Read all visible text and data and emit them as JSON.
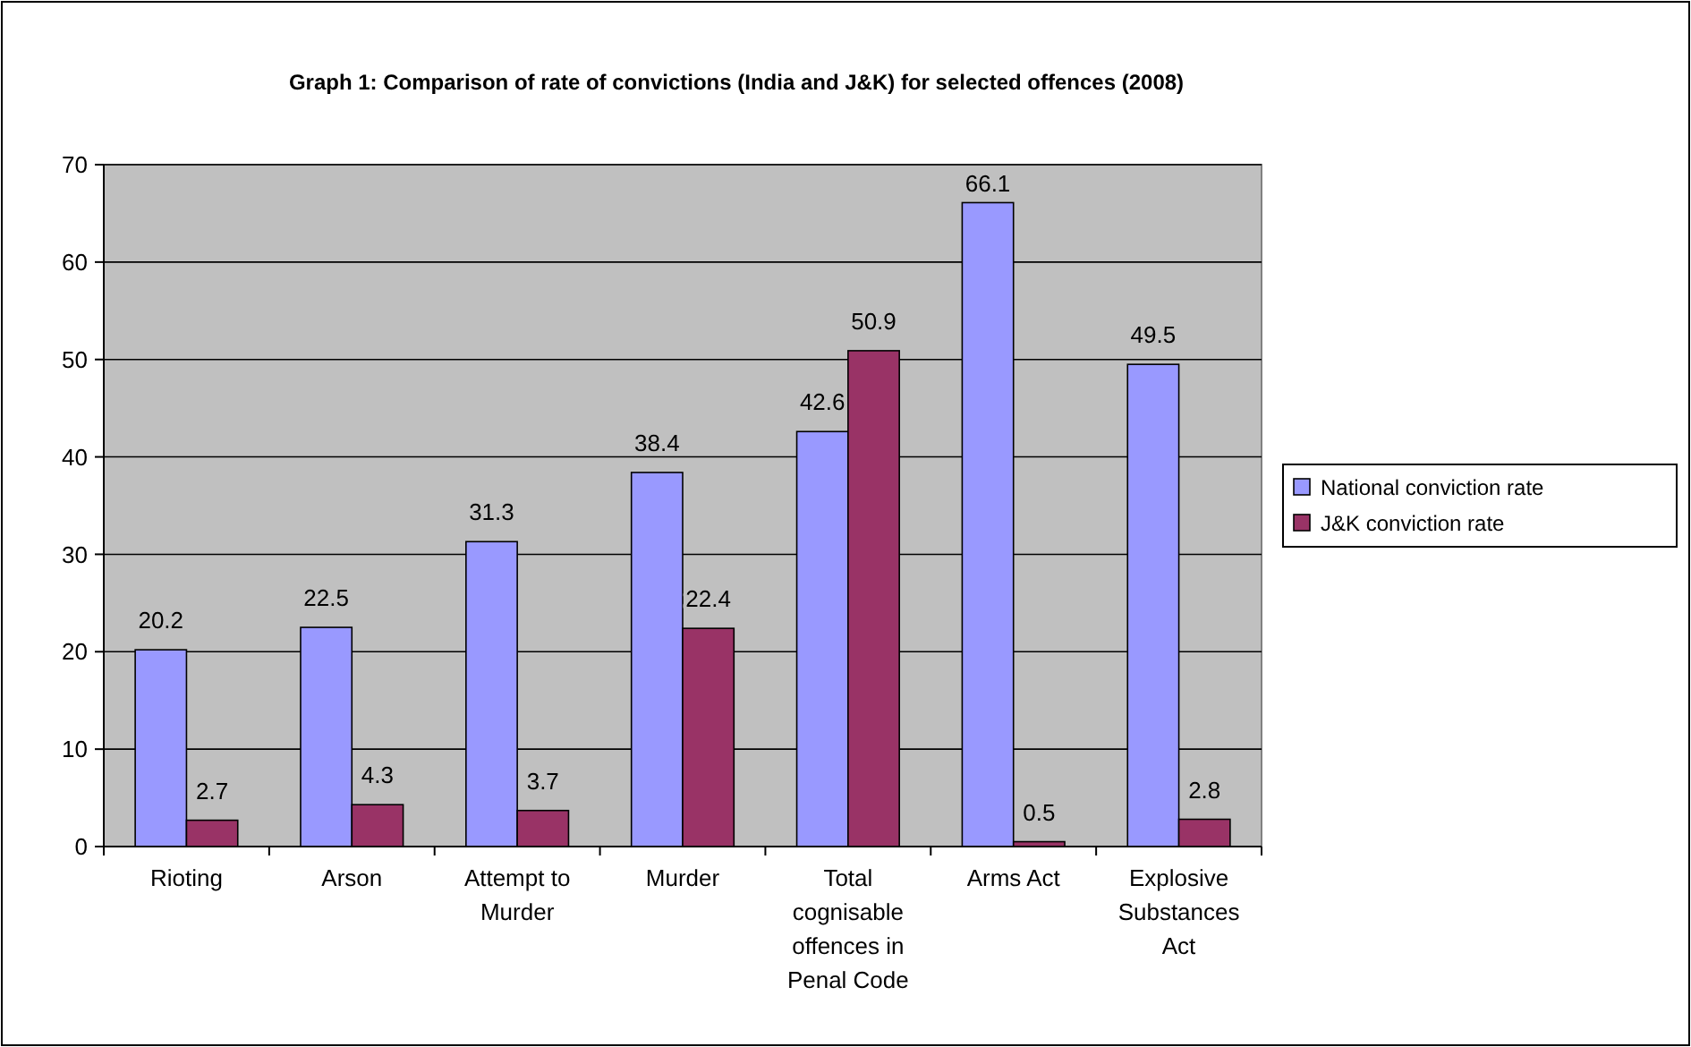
{
  "chart_data": {
    "type": "bar",
    "title": "Graph 1: Comparison of rate of convictions (India and J&K) for selected offences (2008)",
    "categories": [
      "Rioting",
      "Arson",
      "Attempt to Murder",
      "Murder",
      "Total cognisable offences in Penal Code",
      "Arms Act",
      "Explosive Substances Act"
    ],
    "series": [
      {
        "name": "National conviction rate",
        "color": "#9999ff",
        "values": [
          20.2,
          22.5,
          31.3,
          38.4,
          42.6,
          66.1,
          49.5
        ]
      },
      {
        "name": "J&K conviction rate",
        "color": "#993366",
        "values": [
          2.7,
          4.3,
          3.7,
          22.4,
          50.9,
          0.5,
          2.8
        ]
      }
    ],
    "ylim": [
      0,
      70
    ],
    "yticks": [
      0,
      10,
      20,
      30,
      40,
      50,
      60,
      70
    ],
    "grid": "y",
    "legend": "right",
    "data_labels": true
  }
}
